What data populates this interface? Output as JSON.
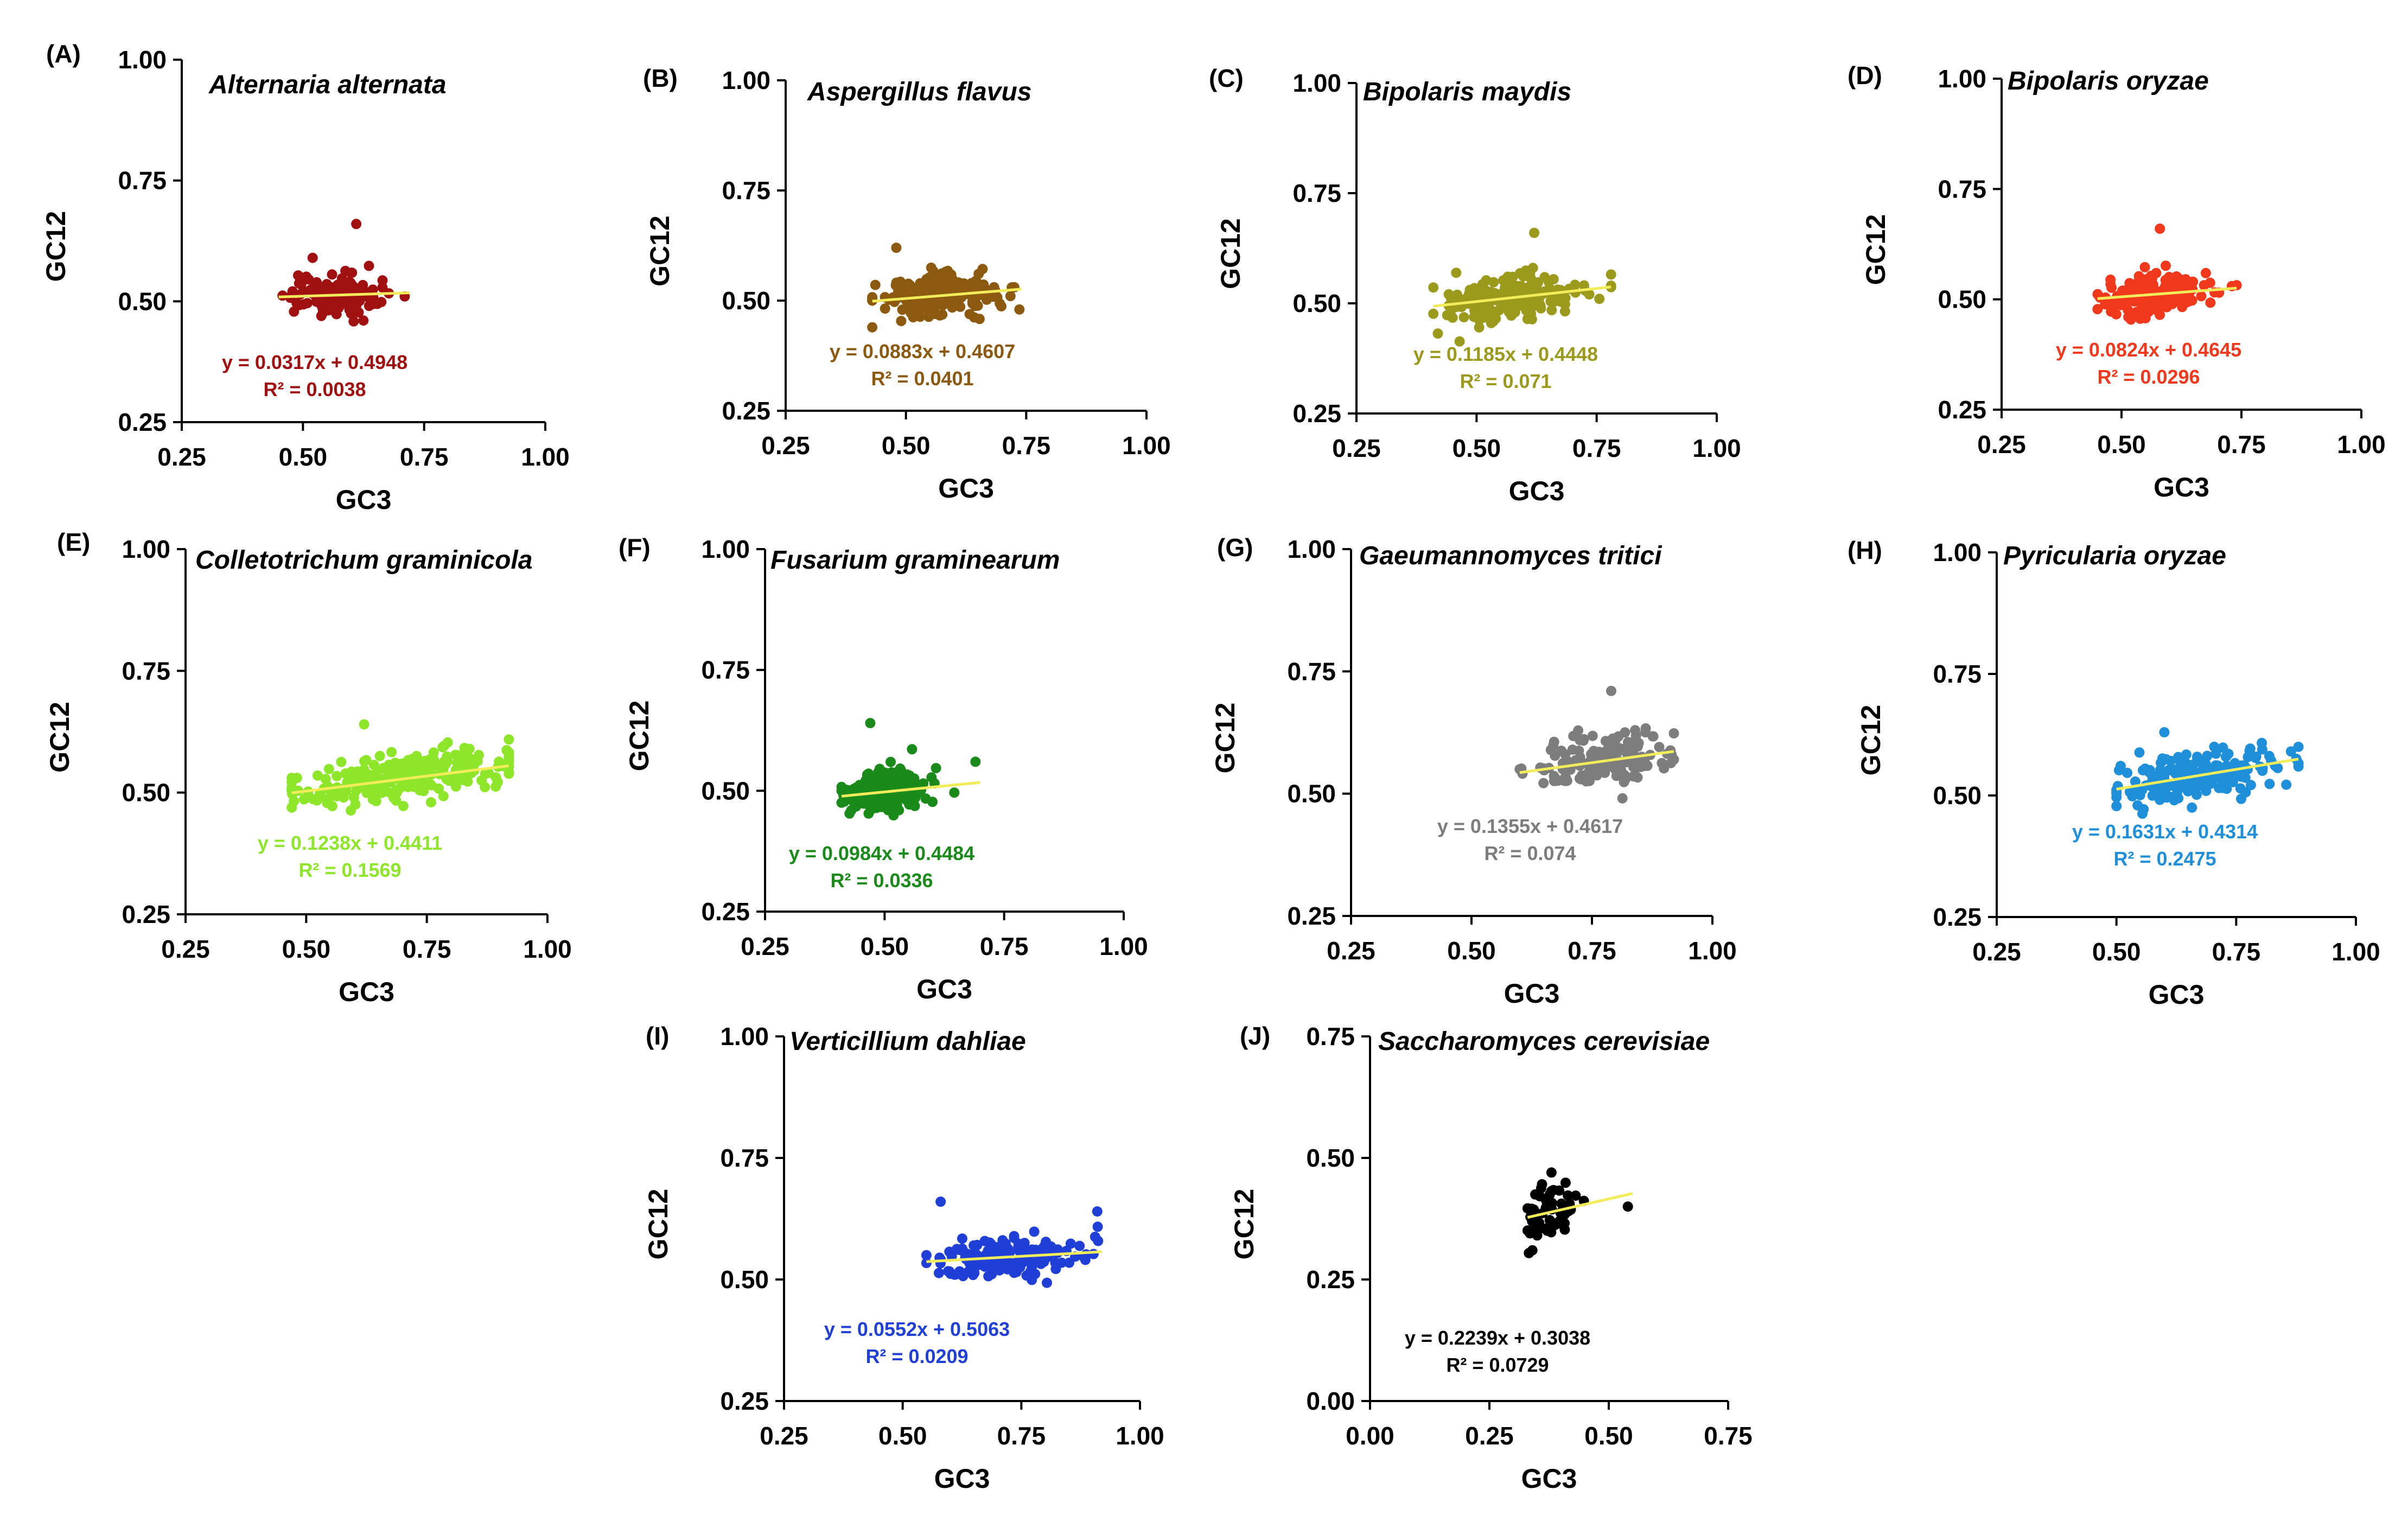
{
  "figure": {
    "trendline_color": "#f2ec5a",
    "axis_title_x": "GC3",
    "axis_title_y": "GC12"
  },
  "chart_data": [
    {
      "type": "scatter",
      "panel": "(A)",
      "title": "Alternaria alternata",
      "xlabel": "GC3",
      "ylabel": "GC12",
      "xlim": [
        0.25,
        1.0
      ],
      "ylim": [
        0.25,
        1.0
      ],
      "xticks": [
        "0.25",
        "0.50",
        "0.75",
        "1.00"
      ],
      "yticks": [
        "0.25",
        "0.50",
        "0.75",
        "1.00"
      ],
      "color": "#a01010",
      "cx": 0.56,
      "cy": 0.512,
      "sx": 0.045,
      "sy": 0.022,
      "xrange": [
        0.45,
        0.72
      ],
      "n": 130,
      "outliers": [
        [
          0.61,
          0.66
        ],
        [
          0.52,
          0.59
        ],
        [
          0.71,
          0.51
        ]
      ],
      "slope": 0.0317,
      "intercept": 0.4948,
      "equation": "y = 0.0317x + 0.4948",
      "r2": "R² = 0.0038"
    },
    {
      "type": "scatter",
      "panel": "(B)",
      "title": "Aspergillus flavus",
      "xlabel": "GC3",
      "ylabel": "GC12",
      "xlim": [
        0.25,
        1.0
      ],
      "ylim": [
        0.25,
        1.0
      ],
      "xticks": [
        "0.25",
        "0.50",
        "0.75",
        "1.00"
      ],
      "yticks": [
        "0.25",
        "0.50",
        "0.75",
        "1.00"
      ],
      "color": "#8b5a10",
      "cx": 0.56,
      "cy": 0.51,
      "sx": 0.06,
      "sy": 0.022,
      "xrange": [
        0.43,
        0.74
      ],
      "n": 220,
      "outliers": [
        [
          0.48,
          0.62
        ],
        [
          0.72,
          0.53
        ]
      ],
      "slope": 0.0883,
      "intercept": 0.4607,
      "equation": "y = 0.0883x + 0.4607",
      "r2": "R² = 0.0401"
    },
    {
      "type": "scatter",
      "panel": "(C)",
      "title": "Bipolaris maydis",
      "xlabel": "GC3",
      "ylabel": "GC12",
      "xlim": [
        0.25,
        1.0
      ],
      "ylim": [
        0.25,
        1.0
      ],
      "xticks": [
        "0.25",
        "0.50",
        "0.75",
        "1.00"
      ],
      "yticks": [
        "0.25",
        "0.50",
        "0.75",
        "1.00"
      ],
      "color": "#9c9a1c",
      "cx": 0.57,
      "cy": 0.513,
      "sx": 0.07,
      "sy": 0.025,
      "xrange": [
        0.41,
        0.78
      ],
      "n": 190,
      "outliers": [
        [
          0.62,
          0.66
        ],
        [
          0.78,
          0.54
        ]
      ],
      "slope": 0.1185,
      "intercept": 0.4448,
      "equation": "y = 0.1185x + 0.4448",
      "r2": "R² = 0.071"
    },
    {
      "type": "scatter",
      "panel": "(D)",
      "title": "Bipolaris oryzae",
      "xlabel": "GC3",
      "ylabel": "GC12",
      "xlim": [
        0.25,
        1.0
      ],
      "ylim": [
        0.25,
        1.0
      ],
      "xticks": [
        "0.25",
        "0.50",
        "0.75",
        "1.00"
      ],
      "yticks": [
        "0.25",
        "0.50",
        "0.75",
        "1.00"
      ],
      "color": "#f0381c",
      "cx": 0.57,
      "cy": 0.51,
      "sx": 0.055,
      "sy": 0.022,
      "xrange": [
        0.45,
        0.74
      ],
      "n": 190,
      "outliers": [
        [
          0.58,
          0.66
        ],
        [
          0.73,
          0.53
        ]
      ],
      "slope": 0.0824,
      "intercept": 0.4645,
      "equation": "y = 0.0824x + 0.4645",
      "r2": "R² = 0.0296"
    },
    {
      "type": "scatter",
      "panel": "(E)",
      "title": "Colletotrichum graminicola",
      "xlabel": "GC3",
      "ylabel": "GC12",
      "xlim": [
        0.25,
        1.0
      ],
      "ylim": [
        0.25,
        1.0
      ],
      "xticks": [
        "0.25",
        "0.50",
        "0.75",
        "1.00"
      ],
      "yticks": [
        "0.25",
        "0.50",
        "0.75",
        "1.00"
      ],
      "color": "#8ee62a",
      "cx": 0.69,
      "cy": 0.527,
      "sx": 0.12,
      "sy": 0.025,
      "xrange": [
        0.47,
        0.92
      ],
      "n": 230,
      "outliers": [
        [
          0.62,
          0.64
        ],
        [
          0.47,
          0.51
        ]
      ],
      "slope": 0.1238,
      "intercept": 0.4411,
      "equation": "y = 0.1238x + 0.4411",
      "r2": "R² = 0.1569"
    },
    {
      "type": "scatter",
      "panel": "(F)",
      "title": "Fusarium graminearum",
      "xlabel": "GC3",
      "ylabel": "GC12",
      "xlim": [
        0.25,
        1.0
      ],
      "ylim": [
        0.25,
        1.0
      ],
      "xticks": [
        "0.25",
        "0.50",
        "0.75",
        "1.00"
      ],
      "yticks": [
        "0.25",
        "0.50",
        "0.75",
        "1.00"
      ],
      "color": "#1a8a1a",
      "cx": 0.5,
      "cy": 0.5,
      "sx": 0.045,
      "sy": 0.02,
      "xrange": [
        0.41,
        0.7
      ],
      "n": 200,
      "outliers": [
        [
          0.47,
          0.64
        ],
        [
          0.69,
          0.56
        ]
      ],
      "slope": 0.0984,
      "intercept": 0.4484,
      "equation": "y = 0.0984x + 0.4484",
      "r2": "R² = 0.0336"
    },
    {
      "type": "scatter",
      "panel": "(G)",
      "title": "Gaeumannomyces tritici",
      "xlabel": "GC3",
      "ylabel": "GC12",
      "xlim": [
        0.25,
        1.0
      ],
      "ylim": [
        0.25,
        1.0
      ],
      "xticks": [
        "0.25",
        "0.50",
        "0.75",
        "1.00"
      ],
      "yticks": [
        "0.25",
        "0.50",
        "0.75",
        "1.00"
      ],
      "color": "#7d7d7d",
      "cx": 0.78,
      "cy": 0.57,
      "sx": 0.07,
      "sy": 0.028,
      "xrange": [
        0.6,
        0.92
      ],
      "n": 160,
      "outliers": [
        [
          0.79,
          0.71
        ],
        [
          0.6,
          0.55
        ]
      ],
      "slope": 0.1355,
      "intercept": 0.4617,
      "equation": "y = 0.1355x + 0.4617",
      "r2": "R² = 0.074"
    },
    {
      "type": "scatter",
      "panel": "(H)",
      "title": "Pyricularia oryzae",
      "xlabel": "GC3",
      "ylabel": "GC12",
      "xlim": [
        0.25,
        1.0
      ],
      "ylim": [
        0.25,
        1.0
      ],
      "xticks": [
        "0.25",
        "0.50",
        "0.75",
        "1.00"
      ],
      "yticks": [
        "0.25",
        "0.50",
        "0.75",
        "1.00"
      ],
      "color": "#1e8fd8",
      "cx": 0.67,
      "cy": 0.54,
      "sx": 0.08,
      "sy": 0.025,
      "xrange": [
        0.5,
        0.88
      ],
      "n": 180,
      "outliers": [
        [
          0.6,
          0.63
        ],
        [
          0.88,
          0.6
        ]
      ],
      "slope": 0.1631,
      "intercept": 0.4314,
      "equation": "y = 0.1631x + 0.4314",
      "r2": "R² = 0.2475"
    },
    {
      "type": "scatter",
      "panel": "(I)",
      "title": "Verticillium dahliae",
      "xlabel": "GC3",
      "ylabel": "GC12",
      "xlim": [
        0.25,
        1.0
      ],
      "ylim": [
        0.25,
        1.0
      ],
      "xticks": [
        "0.25",
        "0.50",
        "0.75",
        "1.00"
      ],
      "yticks": [
        "0.25",
        "0.50",
        "0.75",
        "1.00"
      ],
      "color": "#1f3fd6",
      "cx": 0.72,
      "cy": 0.545,
      "sx": 0.08,
      "sy": 0.022,
      "xrange": [
        0.55,
        0.92
      ],
      "n": 150,
      "outliers": [
        [
          0.58,
          0.66
        ],
        [
          0.91,
          0.64
        ],
        [
          0.55,
          0.55
        ]
      ],
      "slope": 0.0552,
      "intercept": 0.5063,
      "equation": "y = 0.0552x + 0.5063",
      "r2": "R² = 0.0209"
    },
    {
      "type": "scatter",
      "panel": "(J)",
      "title": "Saccharomyces cerevisiae",
      "xlabel": "GC3",
      "ylabel": "GC12",
      "xlim": [
        0.0,
        0.75
      ],
      "ylim": [
        0.0,
        0.75
      ],
      "xticks": [
        "0.00",
        "0.25",
        "0.50",
        "0.75"
      ],
      "yticks": [
        "0.00",
        "0.25",
        "0.50",
        "0.75"
      ],
      "color": "#000000",
      "cx": 0.38,
      "cy": 0.385,
      "sx": 0.03,
      "sy": 0.03,
      "xrange": [
        0.33,
        0.55
      ],
      "n": 55,
      "outliers": [
        [
          0.38,
          0.47
        ],
        [
          0.54,
          0.4
        ],
        [
          0.34,
          0.31
        ]
      ],
      "slope": 0.2239,
      "intercept": 0.3038,
      "equation": "y = 0.2239x + 0.3038",
      "r2": "R² = 0.0729"
    }
  ]
}
